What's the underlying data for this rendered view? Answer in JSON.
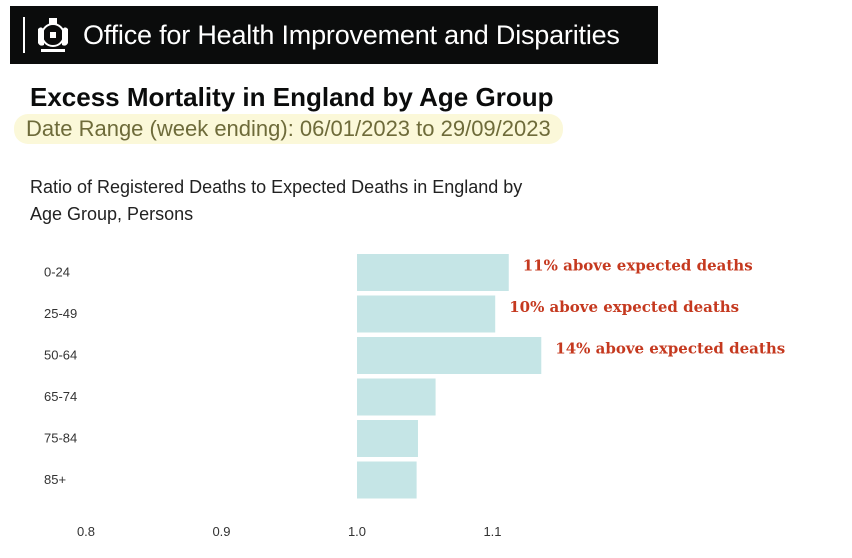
{
  "header": {
    "org_name": "Office for Health Improvement and Disparities",
    "brand_color": "#0b0c0c",
    "crest_icon": "royal-coat-of-arms-icon"
  },
  "title": "Excess Mortality in England by Age Group",
  "date_range": "Date Range (week ending): 06/01/2023 to 29/09/2023",
  "chart_data": {
    "type": "bar",
    "orientation": "horizontal",
    "title": "Ratio of Registered Deaths to Expected Deaths in England by Age Group, Persons",
    "categories": [
      "0-24",
      "25-49",
      "50-64",
      "65-74",
      "75-84",
      "85+"
    ],
    "values": [
      1.112,
      1.102,
      1.136,
      1.058,
      1.045,
      1.044
    ],
    "baseline": 1.0,
    "xlim": [
      0.8,
      1.15
    ],
    "xticks": [
      "0.8",
      "0.9",
      "1.0",
      "1.1"
    ],
    "xticks_values": [
      0.8,
      0.9,
      1.0,
      1.1
    ],
    "bar_color": "#c5e5e6",
    "label_color": "#c5391f",
    "data_labels": [
      "11% above expected deaths",
      "10% above expected deaths",
      "14% above expected deaths",
      "",
      "",
      ""
    ]
  }
}
